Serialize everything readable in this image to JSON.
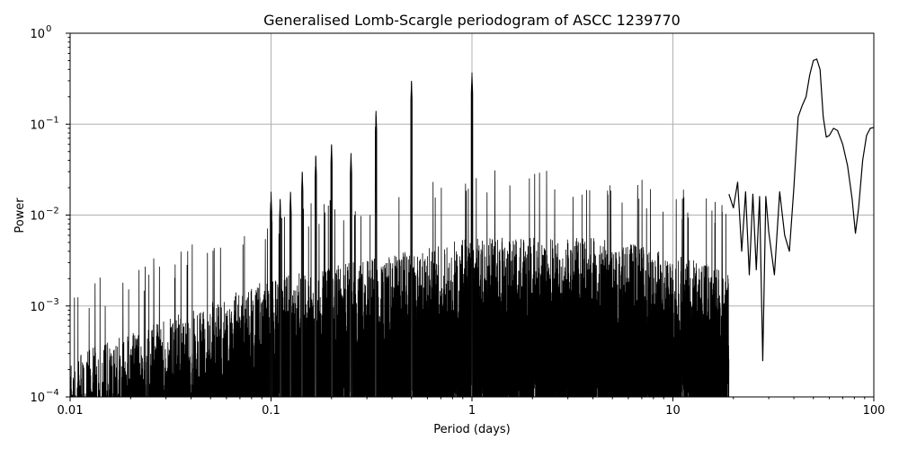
{
  "chart_data": {
    "type": "line",
    "title": "Generalised Lomb-Scargle periodogram of ASCC 1239770",
    "xlabel": "Period (days)",
    "ylabel": "Power",
    "xscale": "log",
    "yscale": "log",
    "xlim": [
      0.01,
      100
    ],
    "ylim": [
      0.0001,
      1
    ],
    "grid": true,
    "line_color": "#000000",
    "x_ticks": [
      {
        "value": 0.01,
        "label": "0.01"
      },
      {
        "value": 0.1,
        "label": "0.1"
      },
      {
        "value": 1,
        "label": "1"
      },
      {
        "value": 10,
        "label": "10"
      },
      {
        "value": 100,
        "label": "100"
      }
    ],
    "y_ticks": [
      {
        "value": 0.0001,
        "base": "10",
        "exp": "−4"
      },
      {
        "value": 0.001,
        "base": "10",
        "exp": "−3"
      },
      {
        "value": 0.01,
        "base": "10",
        "exp": "−2"
      },
      {
        "value": 0.1,
        "base": "10",
        "exp": "−1"
      },
      {
        "value": 1,
        "base": "10",
        "exp": "0"
      }
    ],
    "peaks": [
      {
        "period": 1.0,
        "power": 0.37
      },
      {
        "period": 0.5,
        "power": 0.3
      },
      {
        "period": 0.333,
        "power": 0.14
      },
      {
        "period": 0.25,
        "power": 0.048
      },
      {
        "period": 0.2,
        "power": 0.06
      },
      {
        "period": 0.167,
        "power": 0.045
      },
      {
        "period": 0.143,
        "power": 0.03
      },
      {
        "period": 0.125,
        "power": 0.018
      },
      {
        "period": 0.111,
        "power": 0.015
      },
      {
        "period": 0.1,
        "power": 0.018
      },
      {
        "period": 52.0,
        "power": 0.53
      }
    ],
    "x": [
      19,
      20,
      21,
      22,
      23,
      24,
      25,
      26,
      27,
      28,
      29,
      30,
      32,
      34,
      36,
      38,
      40,
      42,
      44,
      46,
      48,
      50,
      52,
      54,
      56,
      58,
      60,
      63,
      66,
      70,
      74,
      78,
      81,
      84,
      88,
      92,
      96,
      100
    ],
    "y": [
      0.017,
      0.012,
      0.023,
      0.004,
      0.018,
      0.0022,
      0.017,
      0.0025,
      0.016,
      0.00025,
      0.016,
      0.0065,
      0.0022,
      0.018,
      0.006,
      0.004,
      0.02,
      0.12,
      0.16,
      0.2,
      0.35,
      0.5,
      0.52,
      0.4,
      0.12,
      0.072,
      0.075,
      0.09,
      0.085,
      0.06,
      0.035,
      0.015,
      0.0063,
      0.012,
      0.04,
      0.075,
      0.09,
      0.092
    ]
  }
}
